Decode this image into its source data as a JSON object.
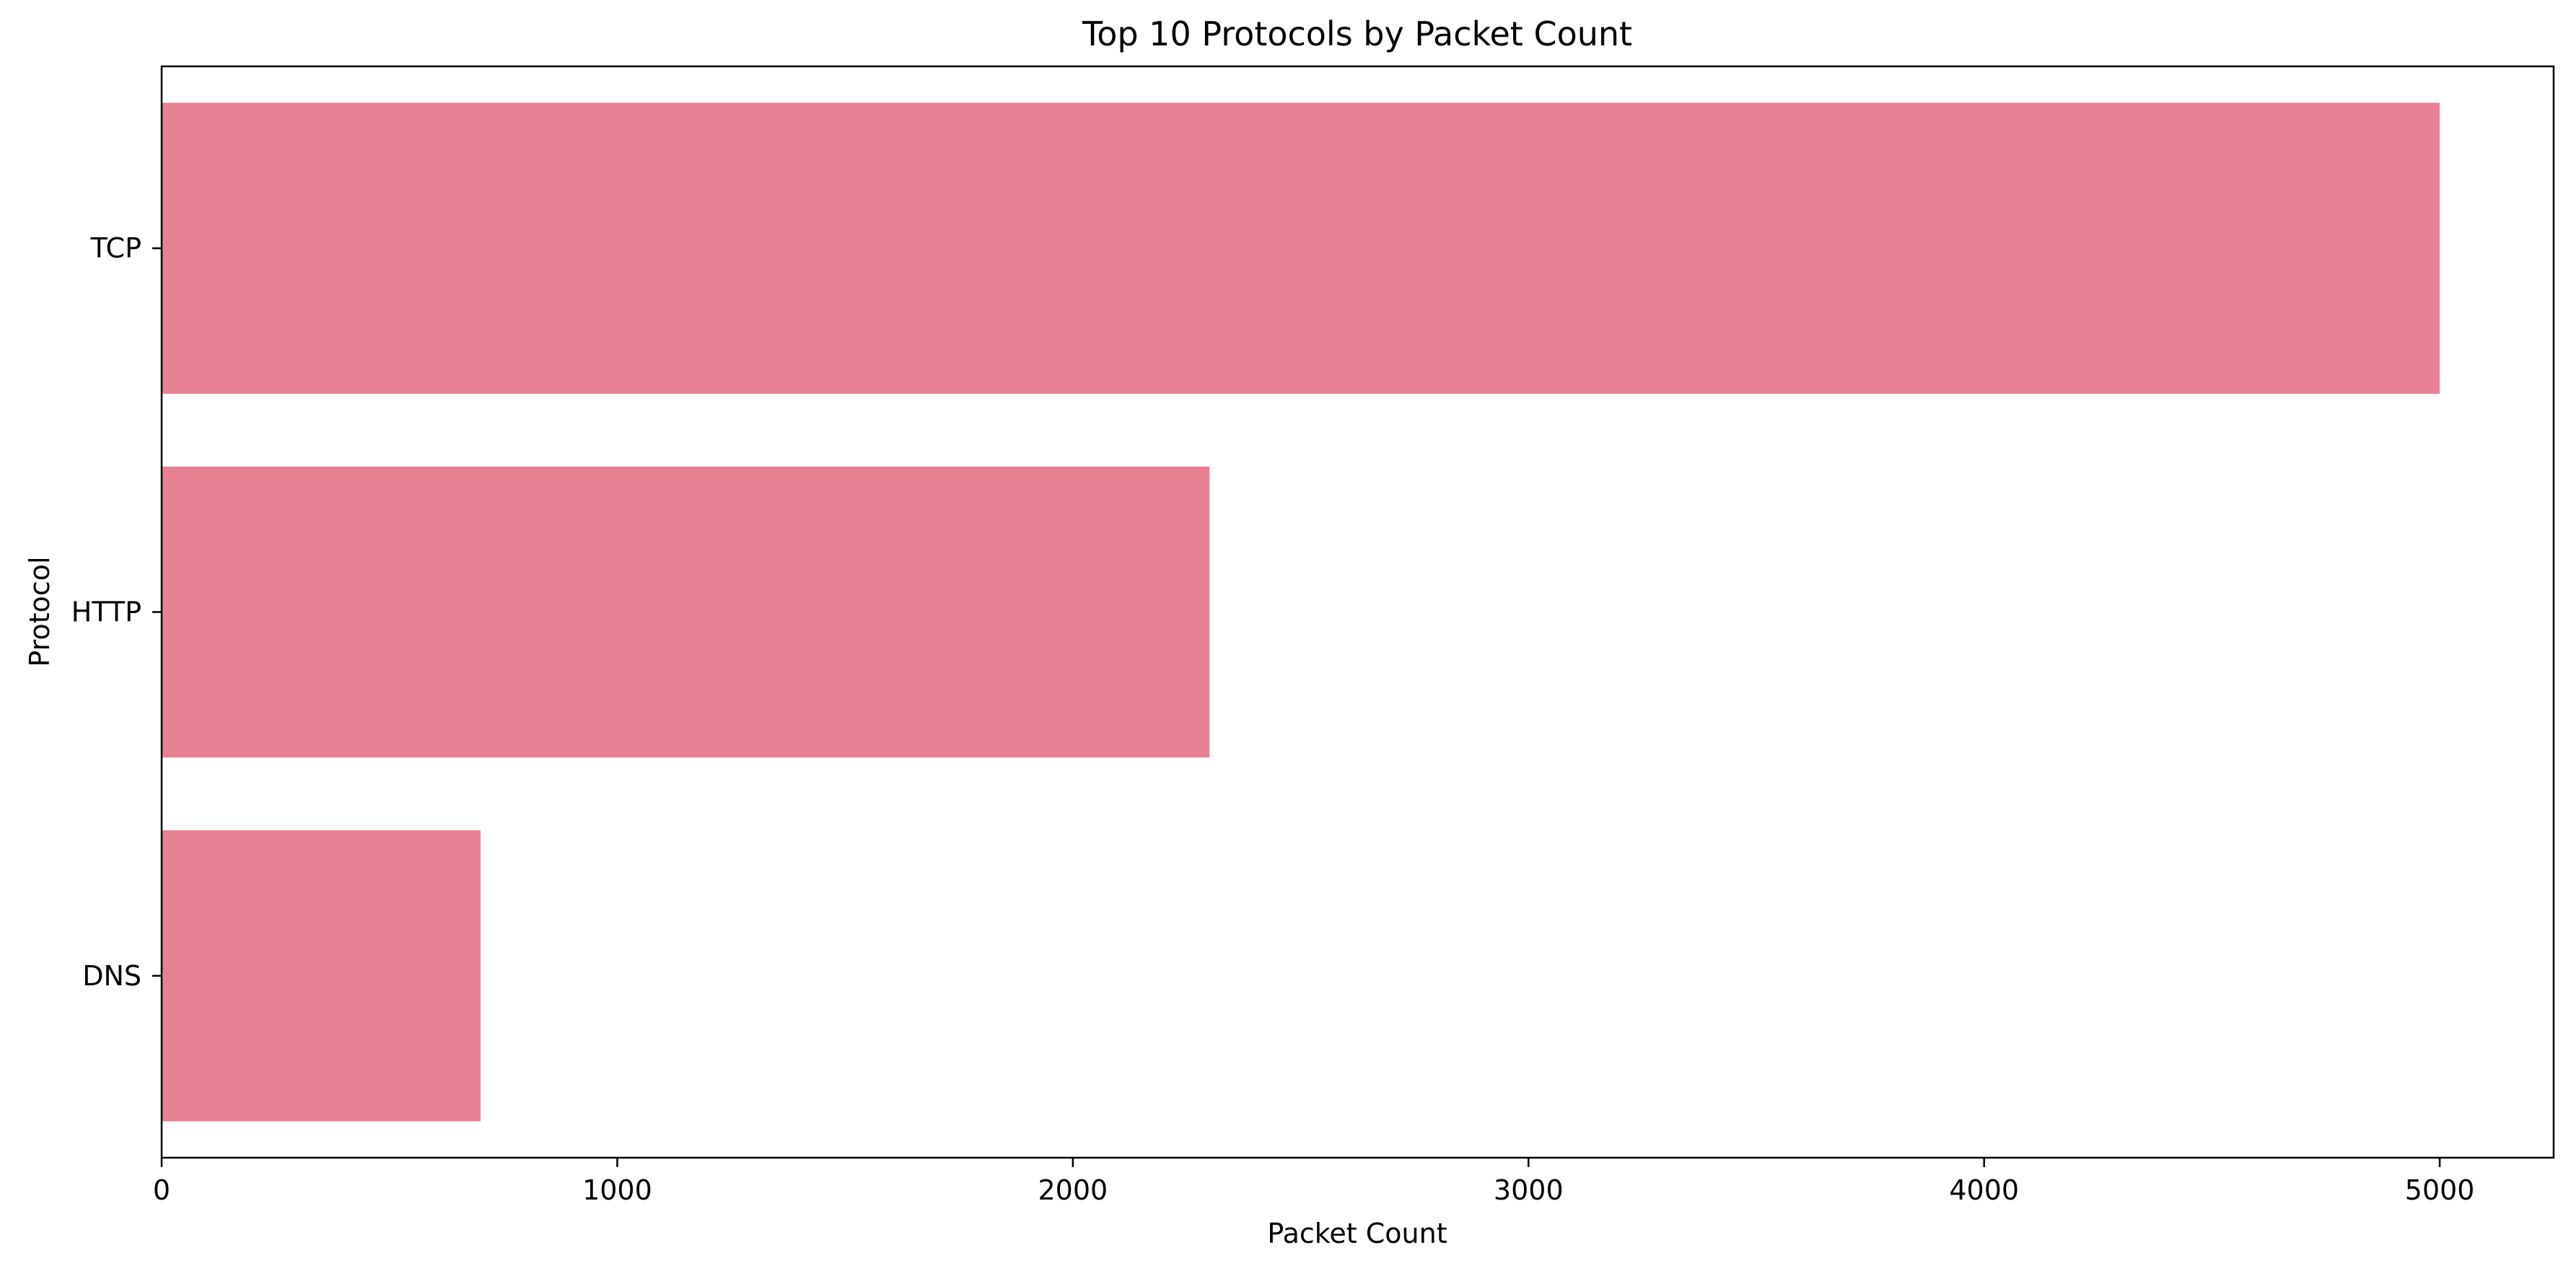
{
  "chart_data": {
    "type": "bar",
    "orientation": "horizontal",
    "title": "Top 10 Protocols by Packet Count",
    "xlabel": "Packet Count",
    "ylabel": "Protocol",
    "categories": [
      "TCP",
      "HTTP",
      "DNS"
    ],
    "values": [
      5000,
      2300,
      700
    ],
    "xlim": [
      0,
      5250
    ],
    "xticks": [
      0,
      1000,
      2000,
      3000,
      4000,
      5000
    ],
    "xtick_labels": [
      "0",
      "1000",
      "2000",
      "3000",
      "4000",
      "5000"
    ],
    "bar_color": "#e88093",
    "grid": false,
    "legend": "none"
  }
}
